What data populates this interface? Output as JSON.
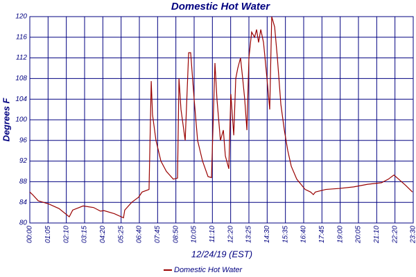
{
  "chart_data": {
    "type": "line",
    "title": "Domestic Hot Water",
    "xlabel": "12/24/19 (EST)",
    "ylabel": "Degrees F",
    "xlim": [
      0,
      21
    ],
    "xticks": [
      {
        "value": 0,
        "label": "00:00"
      },
      {
        "value": 1,
        "label": "01:05"
      },
      {
        "value": 2,
        "label": "02:10"
      },
      {
        "value": 3,
        "label": "03:15"
      },
      {
        "value": 4,
        "label": "04:20"
      },
      {
        "value": 5,
        "label": "05:25"
      },
      {
        "value": 6,
        "label": "06:40"
      },
      {
        "value": 7,
        "label": "07:45"
      },
      {
        "value": 8,
        "label": "08:50"
      },
      {
        "value": 9,
        "label": "10:05"
      },
      {
        "value": 10,
        "label": "11:10"
      },
      {
        "value": 11,
        "label": "12:20"
      },
      {
        "value": 12,
        "label": "13:25"
      },
      {
        "value": 13,
        "label": "14:30"
      },
      {
        "value": 14,
        "label": "15:35"
      },
      {
        "value": 15,
        "label": "16:40"
      },
      {
        "value": 16,
        "label": "17:45"
      },
      {
        "value": 17,
        "label": "19:00"
      },
      {
        "value": 18,
        "label": "20:05"
      },
      {
        "value": 19,
        "label": "21:10"
      },
      {
        "value": 20,
        "label": "22:20"
      },
      {
        "value": 21,
        "label": "23:30"
      }
    ],
    "ylim": [
      80,
      120
    ],
    "yticks": [
      80,
      84,
      88,
      92,
      96,
      100,
      104,
      108,
      112,
      116,
      120
    ],
    "grid": true,
    "x": [
      0,
      0.15,
      0.46,
      1.03,
      1.6,
      2.16,
      2.35,
      2.92,
      3.49,
      3.87,
      4.06,
      4.63,
      5.13,
      5.2,
      5.58,
      5.96,
      6.15,
      6.53,
      6.65,
      6.72,
      6.91,
      7.18,
      7.48,
      7.86,
      8.09,
      8.17,
      8.28,
      8.51,
      8.7,
      8.81,
      9.0,
      9.19,
      9.46,
      9.76,
      9.95,
      10.14,
      10.25,
      10.44,
      10.6,
      10.71,
      10.9,
      11.01,
      11.17,
      11.28,
      11.39,
      11.54,
      11.66,
      11.77,
      11.89,
      12.0,
      12.15,
      12.31,
      12.42,
      12.53,
      12.65,
      12.8,
      12.99,
      13.14,
      13.25,
      13.41,
      13.56,
      13.75,
      13.94,
      14.13,
      14.32,
      14.62,
      15.08,
      15.38,
      15.53,
      15.64,
      16.21,
      16.98,
      17.74,
      18.5,
      19.26,
      19.64,
      19.94,
      20.2,
      20.58,
      20.96
    ],
    "series": [
      {
        "name": "Domestic Hot Water",
        "color": "#990000",
        "values": [
          86,
          85.5,
          84.3,
          83.7,
          82.8,
          81.2,
          82.5,
          83.3,
          83,
          82.3,
          82.4,
          81.8,
          81,
          82.5,
          84,
          85,
          86,
          86.5,
          107.5,
          101,
          96,
          92,
          90,
          88.5,
          88.7,
          108,
          102,
          96,
          113,
          113,
          104,
          96,
          92,
          89,
          88.8,
          111,
          104,
          96,
          98,
          93,
          90.5,
          105,
          97,
          108,
          110,
          112,
          108,
          104,
          98,
          112,
          117,
          116,
          117.5,
          115,
          117.5,
          115,
          108,
          102,
          120,
          118,
          112,
          103,
          98,
          94,
          91,
          88.5,
          86.5,
          86,
          85.5,
          86,
          86.5,
          86.7,
          87,
          87.5,
          87.8,
          88.5,
          89.3,
          88.5,
          87.3,
          86
        ]
      }
    ]
  }
}
